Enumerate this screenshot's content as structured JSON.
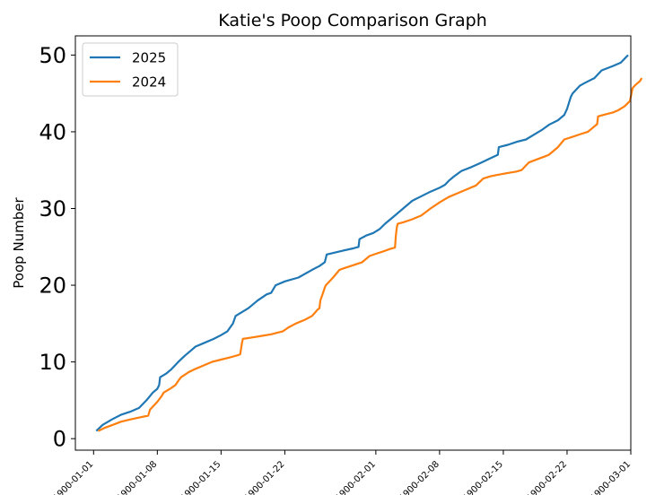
{
  "chart_data": {
    "type": "line",
    "title": "Katie's Poop Comparison Graph",
    "xlabel": "",
    "ylabel": "Poop Number",
    "ylim": [
      -1.5,
      52.5
    ],
    "xlim_day": [
      -1.0,
      60.0
    ],
    "yticks": [
      0,
      10,
      20,
      30,
      40,
      50
    ],
    "xticks": [
      {
        "day": 1,
        "label": "1900-01-01"
      },
      {
        "day": 8,
        "label": "1900-01-08"
      },
      {
        "day": 15,
        "label": "1900-01-15"
      },
      {
        "day": 22,
        "label": "1900-01-22"
      },
      {
        "day": 32,
        "label": "1900-02-01"
      },
      {
        "day": 39,
        "label": "1900-02-08"
      },
      {
        "day": 46,
        "label": "1900-02-15"
      },
      {
        "day": 53,
        "label": "1900-02-22"
      },
      {
        "day": 60,
        "label": "1900-03-01"
      }
    ],
    "legend_position": "top-left",
    "grid": false,
    "series": [
      {
        "name": "2025",
        "color": "#1f77b4",
        "points": [
          [
            1.3,
            1
          ],
          [
            2,
            1.8
          ],
          [
            3,
            2.5
          ],
          [
            4,
            3.1
          ],
          [
            5,
            3.5
          ],
          [
            6,
            4
          ],
          [
            6.8,
            5
          ],
          [
            7.5,
            6
          ],
          [
            8,
            6.5
          ],
          [
            8.2,
            7
          ],
          [
            8.3,
            8
          ],
          [
            9,
            8.5
          ],
          [
            9.5,
            9
          ],
          [
            10.3,
            10
          ],
          [
            11,
            10.8
          ],
          [
            11.7,
            11.5
          ],
          [
            12.2,
            12
          ],
          [
            13.2,
            12.5
          ],
          [
            14.2,
            13
          ],
          [
            15,
            13.5
          ],
          [
            15.7,
            14
          ],
          [
            16.3,
            15
          ],
          [
            16.6,
            16
          ],
          [
            18,
            17
          ],
          [
            19,
            18
          ],
          [
            20,
            18.8
          ],
          [
            20.5,
            19
          ],
          [
            21,
            20
          ],
          [
            22,
            20.5
          ],
          [
            23.5,
            21
          ],
          [
            25,
            22
          ],
          [
            25.8,
            22.5
          ],
          [
            26.4,
            23
          ],
          [
            26.6,
            24
          ],
          [
            28,
            24.4
          ],
          [
            29.5,
            24.8
          ],
          [
            30.1,
            25
          ],
          [
            30.2,
            26
          ],
          [
            31,
            26.5
          ],
          [
            31.7,
            26.8
          ],
          [
            32.4,
            27.3
          ],
          [
            33,
            28
          ],
          [
            34,
            29
          ],
          [
            35,
            30
          ],
          [
            36,
            31
          ],
          [
            37,
            31.6
          ],
          [
            38,
            32.2
          ],
          [
            39,
            32.7
          ],
          [
            39.6,
            33.1
          ],
          [
            40,
            33.6
          ],
          [
            40.6,
            34.2
          ],
          [
            41.4,
            34.9
          ],
          [
            42.5,
            35.4
          ],
          [
            43.6,
            36
          ],
          [
            44.5,
            36.5
          ],
          [
            45.4,
            37
          ],
          [
            45.5,
            38
          ],
          [
            46.5,
            38.3
          ],
          [
            47.5,
            38.7
          ],
          [
            48.5,
            39
          ],
          [
            49.2,
            39.5
          ],
          [
            50.3,
            40.3
          ],
          [
            51,
            40.9
          ],
          [
            52,
            41.5
          ],
          [
            52.7,
            42.2
          ],
          [
            53,
            43
          ],
          [
            53.4,
            44.5
          ],
          [
            53.6,
            45
          ],
          [
            54.4,
            46
          ],
          [
            55,
            46.4
          ],
          [
            56,
            47
          ],
          [
            56.8,
            48
          ],
          [
            58.1,
            48.6
          ],
          [
            58.9,
            49
          ],
          [
            59.7,
            50
          ]
        ]
      },
      {
        "name": "2024",
        "color": "#ff7f0e",
        "points": [
          [
            1.5,
            1
          ],
          [
            2.2,
            1.4
          ],
          [
            3.1,
            1.8
          ],
          [
            4,
            2.2
          ],
          [
            5,
            2.5
          ],
          [
            6.2,
            2.8
          ],
          [
            7,
            3
          ],
          [
            7.2,
            3.8
          ],
          [
            7.6,
            4.3
          ],
          [
            8,
            4.8
          ],
          [
            8.5,
            5.6
          ],
          [
            8.7,
            6
          ],
          [
            9.4,
            6.5
          ],
          [
            10,
            7
          ],
          [
            10.4,
            7.7
          ],
          [
            10.6,
            8
          ],
          [
            11.5,
            8.7
          ],
          [
            12,
            9
          ],
          [
            13,
            9.5
          ],
          [
            14,
            10
          ],
          [
            15,
            10.3
          ],
          [
            16,
            10.6
          ],
          [
            16.9,
            10.9
          ],
          [
            17.1,
            11
          ],
          [
            17.3,
            12.5
          ],
          [
            17.4,
            13
          ],
          [
            18.5,
            13.2
          ],
          [
            19.5,
            13.4
          ],
          [
            20.5,
            13.6
          ],
          [
            21.5,
            13.9
          ],
          [
            21.8,
            14
          ],
          [
            22.4,
            14.5
          ],
          [
            23.2,
            15
          ],
          [
            24.2,
            15.5
          ],
          [
            25,
            16
          ],
          [
            25.6,
            16.8
          ],
          [
            25.8,
            17
          ],
          [
            25.9,
            18
          ],
          [
            26.2,
            19
          ],
          [
            26.4,
            19.7
          ],
          [
            26.5,
            20
          ],
          [
            27.3,
            21
          ],
          [
            28,
            22
          ],
          [
            28.7,
            22.3
          ],
          [
            29.5,
            22.6
          ],
          [
            30.5,
            23
          ],
          [
            31.3,
            23.8
          ],
          [
            32,
            24.1
          ],
          [
            32.8,
            24.4
          ],
          [
            33.5,
            24.7
          ],
          [
            34.1,
            24.9
          ],
          [
            34.2,
            26.5
          ],
          [
            34.3,
            27.5
          ],
          [
            34.4,
            28
          ],
          [
            35,
            28.2
          ],
          [
            36,
            28.6
          ],
          [
            37,
            29.1
          ],
          [
            38,
            30
          ],
          [
            39,
            30.8
          ],
          [
            40,
            31.5
          ],
          [
            41,
            32
          ],
          [
            42,
            32.5
          ],
          [
            43,
            33
          ],
          [
            43.8,
            33.9
          ],
          [
            44.6,
            34.2
          ],
          [
            45.4,
            34.4
          ],
          [
            46.4,
            34.6
          ],
          [
            47.4,
            34.8
          ],
          [
            48,
            35
          ],
          [
            48.8,
            36
          ],
          [
            49.7,
            36.4
          ],
          [
            50.6,
            36.8
          ],
          [
            51,
            37
          ],
          [
            52,
            38
          ],
          [
            52.7,
            39
          ],
          [
            53.5,
            39.3
          ],
          [
            54.5,
            39.7
          ],
          [
            55.3,
            40
          ],
          [
            55.8,
            40.5
          ],
          [
            56.3,
            41
          ],
          [
            56.4,
            42
          ],
          [
            57.3,
            42.3
          ],
          [
            58,
            42.5
          ],
          [
            58.6,
            42.8
          ],
          [
            59.3,
            43.3
          ],
          [
            59.9,
            44
          ],
          [
            60.2,
            45.7
          ],
          [
            60.5,
            46.1
          ],
          [
            61,
            46.6
          ],
          [
            61.2,
            47
          ]
        ]
      }
    ]
  }
}
